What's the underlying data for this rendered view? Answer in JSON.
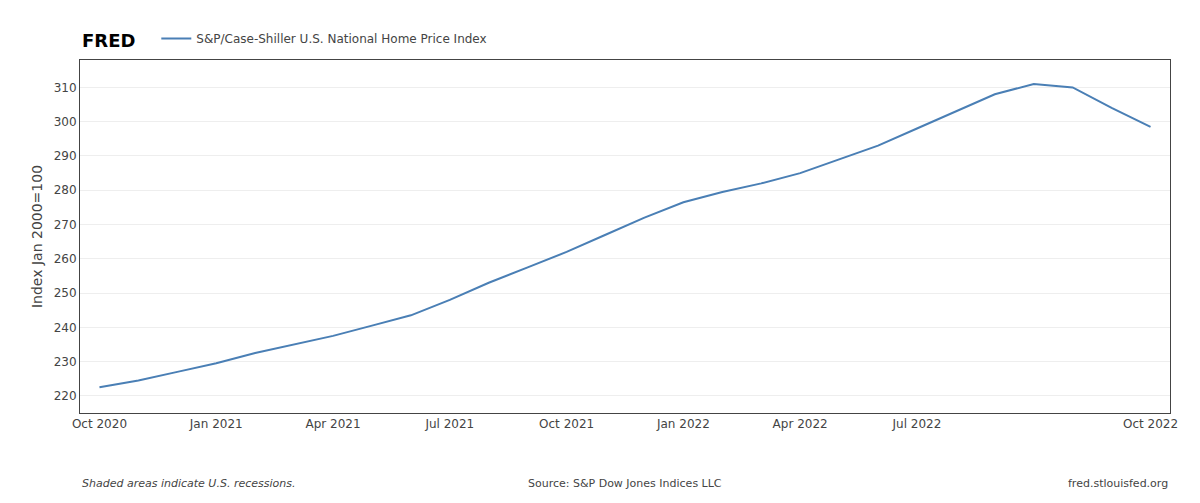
{
  "chart_data": {
    "type": "line",
    "categories": [
      "Oct 2020",
      null,
      null,
      "Jan 2021",
      null,
      null,
      "Apr 2021",
      null,
      null,
      "Jul 2021",
      null,
      null,
      "Oct 2021",
      null,
      null,
      "Jan 2022",
      null,
      null,
      "Apr 2022",
      null,
      null,
      "Jul 2022",
      null,
      null,
      null,
      null,
      null,
      "Oct 2022"
    ],
    "series": [
      {
        "name": "S&P/Case-Shiller U.S. National Home Price Index",
        "color": "#4a7fb5",
        "values": [
          222.5,
          224.5,
          227.0,
          229.5,
          232.5,
          235.0,
          237.5,
          240.5,
          243.5,
          248.0,
          253.0,
          257.5,
          262.0,
          267.0,
          272.0,
          276.5,
          279.5,
          282.0,
          285.0,
          289.0,
          293.0,
          298.0,
          303.0,
          308.0,
          311.0,
          310.0,
          304.0,
          298.5
        ]
      }
    ],
    "ylabel": "Index Jan 2000=100",
    "ylim": [
      215,
      318
    ],
    "yticks": [
      220,
      230,
      240,
      250,
      260,
      270,
      280,
      290,
      300,
      310
    ],
    "grid": true,
    "legend": "top left",
    "annotations": [
      "FRED",
      "Shaded areas indicate U.S. recessions.",
      "Source: S&P Dow Jones Indices LLC",
      "fred.stlouisfed.org"
    ]
  }
}
